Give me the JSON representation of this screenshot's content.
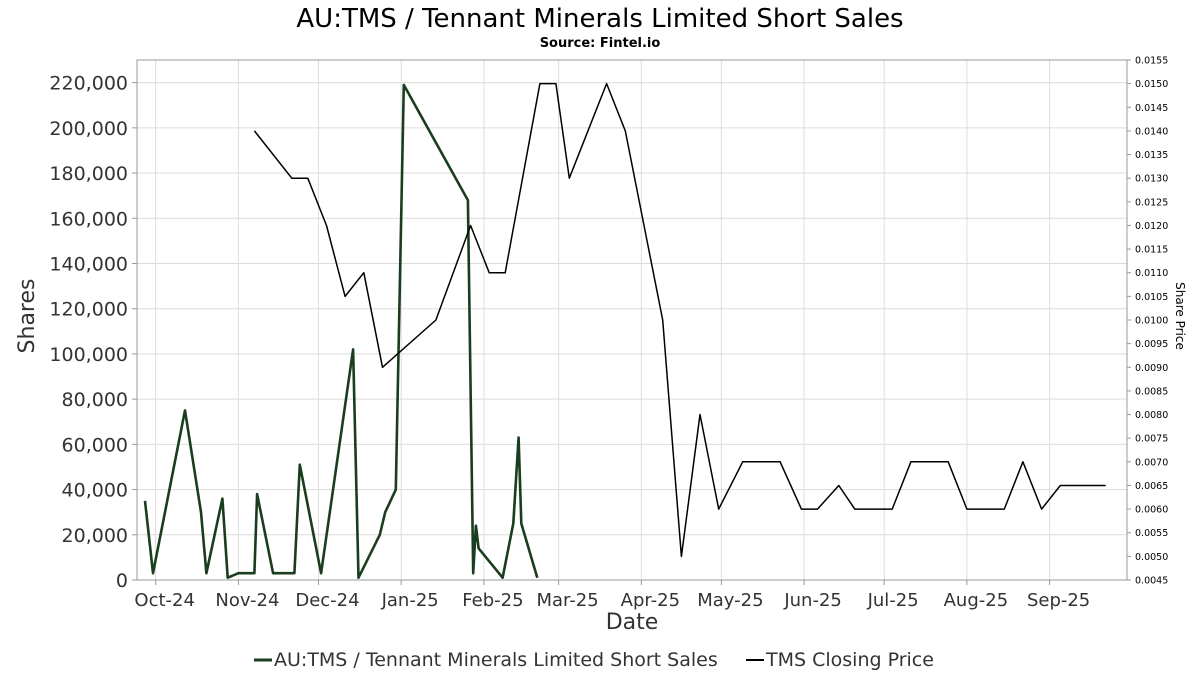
{
  "chart_data": {
    "type": "line",
    "title": "AU:TMS / Tennant Minerals Limited Short Sales",
    "subtitle": "Source: Fintel.io",
    "xlabel": "Date",
    "ylabel": "Shares",
    "ylabel_right": "Share Price",
    "xlim": [
      "2024-09-24",
      "2025-09-30"
    ],
    "ylim": [
      0,
      230000
    ],
    "ylim_right": [
      0.0045,
      0.0155
    ],
    "grid": true,
    "legend_position": "bottom",
    "x_ticks": [
      {
        "date": "2024-10-01",
        "label": "Oct-24"
      },
      {
        "date": "2024-11-01",
        "label": "Nov-24"
      },
      {
        "date": "2024-12-01",
        "label": "Dec-24"
      },
      {
        "date": "2025-01-01",
        "label": "Jan-25"
      },
      {
        "date": "2025-02-01",
        "label": "Feb-25"
      },
      {
        "date": "2025-03-01",
        "label": "Mar-25"
      },
      {
        "date": "2025-04-01",
        "label": "Apr-25"
      },
      {
        "date": "2025-05-01",
        "label": "May-25"
      },
      {
        "date": "2025-06-01",
        "label": "Jun-25"
      },
      {
        "date": "2025-07-01",
        "label": "Jul-25"
      },
      {
        "date": "2025-08-01",
        "label": "Aug-25"
      },
      {
        "date": "2025-09-01",
        "label": "Sep-25"
      }
    ],
    "y_ticks": [
      0,
      20000,
      40000,
      60000,
      80000,
      100000,
      120000,
      140000,
      160000,
      180000,
      200000,
      220000
    ],
    "y_tick_labels": [
      "0",
      "20,000",
      "40,000",
      "60,000",
      "80,000",
      "100,000",
      "120,000",
      "140,000",
      "160,000",
      "180,000",
      "200,000",
      "220,000"
    ],
    "y_right_ticks": [
      0.0045,
      0.005,
      0.0055,
      0.006,
      0.0065,
      0.007,
      0.0075,
      0.008,
      0.0085,
      0.009,
      0.0095,
      0.01,
      0.0105,
      0.011,
      0.0115,
      0.012,
      0.0125,
      0.013,
      0.0135,
      0.014,
      0.0145,
      0.015,
      0.0155
    ],
    "y_right_tick_labels": [
      "0.0045",
      "0.0050",
      "0.0055",
      "0.0060",
      "0.0065",
      "0.0070",
      "0.0075",
      "0.0080",
      "0.0085",
      "0.0090",
      "0.0095",
      "0.0100",
      "0.0105",
      "0.0110",
      "0.0115",
      "0.0120",
      "0.0125",
      "0.0130",
      "0.0135",
      "0.0140",
      "0.0145",
      "0.0150",
      "0.0155"
    ],
    "series": [
      {
        "name": "AU:TMS / Tennant Minerals Limited Short Sales",
        "axis": "left",
        "color": "#1a3d1f",
        "x": [
          "2024-09-27",
          "2024-09-30",
          "2024-10-12",
          "2024-10-18",
          "2024-10-20",
          "2024-10-26",
          "2024-10-28",
          "2024-11-01",
          "2024-11-07",
          "2024-11-08",
          "2024-11-14",
          "2024-11-22",
          "2024-11-24",
          "2024-12-02",
          "2024-12-14",
          "2024-12-16",
          "2024-12-24",
          "2024-12-26",
          "2024-12-30",
          "2025-01-02",
          "2025-01-26",
          "2025-01-28",
          "2025-01-29",
          "2025-01-30",
          "2025-02-08",
          "2025-02-12",
          "2025-02-14",
          "2025-02-15",
          "2025-02-21"
        ],
        "y": [
          35000,
          3000,
          75000,
          30000,
          3000,
          36000,
          1000,
          3000,
          3000,
          38000,
          3000,
          3000,
          51000,
          3000,
          102000,
          1000,
          20000,
          30000,
          40000,
          219000,
          168000,
          3000,
          24000,
          14000,
          1000,
          25000,
          63000,
          25000,
          1000
        ]
      },
      {
        "name": "TMS Closing Price",
        "axis": "right",
        "color": "#000000",
        "x": [
          "2024-11-07",
          "2024-11-21",
          "2024-11-27",
          "2024-12-04",
          "2024-12-11",
          "2024-12-18",
          "2024-12-25",
          "2025-01-14",
          "2025-01-27",
          "2025-02-03",
          "2025-02-09",
          "2025-02-22",
          "2025-02-28",
          "2025-03-05",
          "2025-03-19",
          "2025-03-26",
          "2025-04-09",
          "2025-04-16",
          "2025-04-23",
          "2025-04-30",
          "2025-05-09",
          "2025-05-23",
          "2025-05-31",
          "2025-06-06",
          "2025-06-14",
          "2025-06-20",
          "2025-07-04",
          "2025-07-11",
          "2025-07-25",
          "2025-08-01",
          "2025-08-15",
          "2025-08-22",
          "2025-08-29",
          "2025-09-05",
          "2025-09-14",
          "2025-09-22"
        ],
        "y": [
          0.014,
          0.013,
          0.013,
          0.012,
          0.0105,
          0.011,
          0.009,
          0.01,
          0.012,
          0.011,
          0.011,
          0.015,
          0.015,
          0.013,
          0.015,
          0.014,
          0.01,
          0.005,
          0.008,
          0.006,
          0.007,
          0.007,
          0.006,
          0.006,
          0.0065,
          0.006,
          0.006,
          0.007,
          0.007,
          0.006,
          0.006,
          0.007,
          0.006,
          0.0065,
          0.0065,
          0.0065
        ]
      }
    ]
  }
}
